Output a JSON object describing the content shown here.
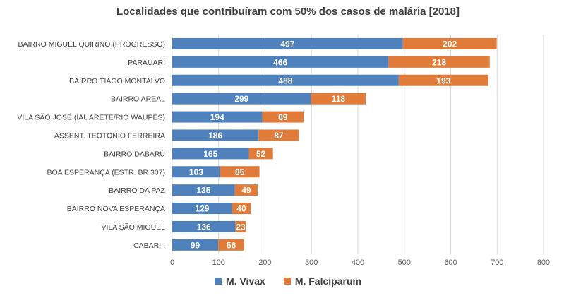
{
  "chart_data": {
    "type": "bar",
    "orientation": "horizontal",
    "stacked": true,
    "title": "Localidades que contribuíram com 50% dos casos de malária [2018]",
    "categories": [
      "BAIRRO MIGUEL QUIRINO (PROGRESSO)",
      "PARAUARI",
      "BAIRRO TIAGO MONTALVO",
      "BAIRRO AREAL",
      "VILA SÃO JOSÉ (IAUARETE/RIO WAUPÉS)",
      "ASSENT. TEOTONIO FERREIRA",
      "BAIRRO DABARÚ",
      "BOA ESPERANÇA (ESTR. BR 307)",
      "BAIRRO DA PAZ",
      "BAIRRO NOVA ESPERANÇA",
      "VILA SÃO MIGUEL",
      "CABARI I"
    ],
    "series": [
      {
        "name": "M. Vivax",
        "color": "#4f81bd",
        "values": [
          497,
          466,
          488,
          299,
          194,
          186,
          165,
          103,
          135,
          129,
          136,
          99
        ]
      },
      {
        "name": "M. Falciparum",
        "color": "#e07b39",
        "values": [
          202,
          218,
          193,
          118,
          89,
          87,
          52,
          85,
          49,
          40,
          23,
          56
        ]
      }
    ],
    "xlim": [
      0,
      800
    ],
    "xticks": [
      0,
      100,
      200,
      300,
      400,
      500,
      600,
      700,
      800
    ],
    "grid": true,
    "legend_position": "bottom"
  }
}
